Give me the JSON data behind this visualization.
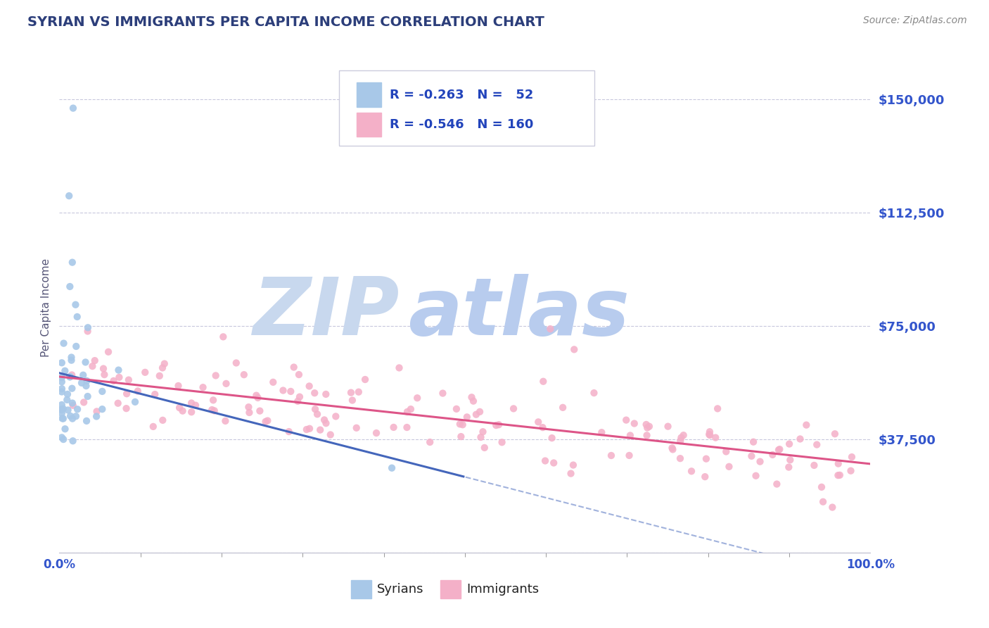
{
  "title": "SYRIAN VS IMMIGRANTS PER CAPITA INCOME CORRELATION CHART",
  "source_text": "Source: ZipAtlas.com",
  "ylabel": "Per Capita Income",
  "xlim": [
    0.0,
    1.0
  ],
  "ylim": [
    0,
    162000
  ],
  "yticks": [
    0,
    37500,
    75000,
    112500,
    150000
  ],
  "ytick_labels": [
    "",
    "$37,500",
    "$75,000",
    "$112,500",
    "$150,000"
  ],
  "watermark_zip": "ZIP",
  "watermark_atlas": "atlas",
  "legend_text1": "R = -0.263   N =   52",
  "legend_text2": "R = -0.546   N = 160",
  "legend_label1": "Syrians",
  "legend_label2": "Immigrants",
  "blue_color": "#a8c8e8",
  "pink_color": "#f4b0c8",
  "trend_blue": "#4466bb",
  "trend_pink": "#dd5588",
  "title_color": "#2c3e7a",
  "ytick_color": "#3355cc",
  "source_color": "#888888",
  "legend_text_color": "#2244bb",
  "watermark_zip_color": "#c8d8ee",
  "watermark_atlas_color": "#b8ccee",
  "grid_color": "#aaaacc",
  "bottom_label_color": "#222222"
}
